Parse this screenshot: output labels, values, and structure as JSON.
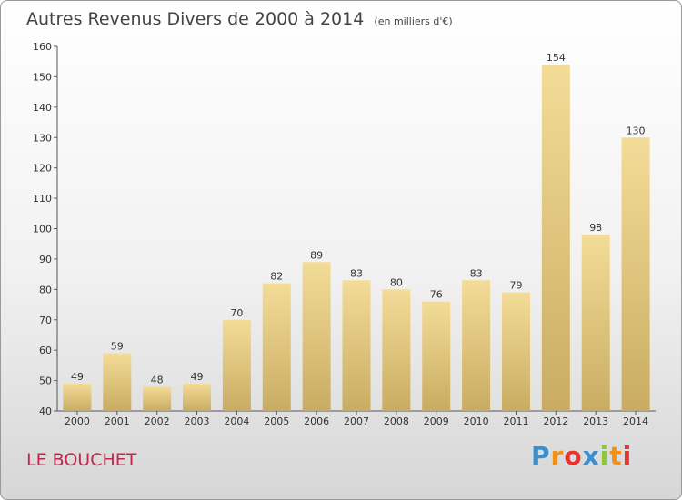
{
  "header": {
    "title": "Autres Revenus Divers de 2000 à 2014",
    "subtitle": "(en milliers d'€)"
  },
  "footer": {
    "place": "LE BOUCHET",
    "brand": "Proxiti",
    "brand_letters": [
      "P",
      "r",
      "o",
      "x",
      "i",
      "t",
      "i"
    ],
    "brand_colors": [
      "#3a8fd0",
      "#f29018",
      "#e8352b",
      "#3a8fd0",
      "#8cc63e",
      "#f29018",
      "#e8352b"
    ]
  },
  "chart_data": {
    "type": "bar",
    "title": "Autres Revenus Divers de 2000 à 2014",
    "subtitle": "(en milliers d'€)",
    "categories": [
      "2000",
      "2001",
      "2002",
      "2003",
      "2004",
      "2005",
      "2006",
      "2007",
      "2008",
      "2009",
      "2010",
      "2011",
      "2012",
      "2013",
      "2014"
    ],
    "values": [
      49,
      59,
      48,
      49,
      70,
      82,
      89,
      83,
      80,
      76,
      83,
      79,
      154,
      98,
      130
    ],
    "ylim": [
      40,
      160
    ],
    "yticks": [
      40,
      50,
      60,
      70,
      80,
      90,
      100,
      110,
      120,
      130,
      140,
      150,
      160
    ],
    "grid": false,
    "bar_color_light": "#f3dc98",
    "bar_color_dark": "#c9ac62"
  }
}
